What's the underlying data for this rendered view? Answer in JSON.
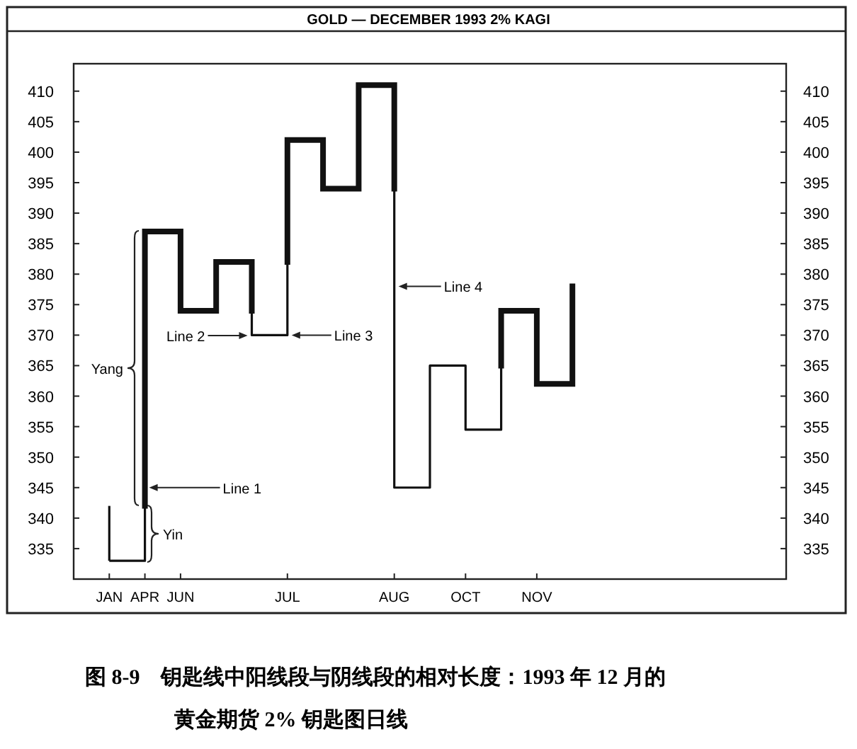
{
  "chart_data": {
    "type": "step",
    "title": "GOLD — DECEMBER 1993 2% KAGI",
    "categories": [
      "JAN",
      "APR",
      "JUN",
      null,
      null,
      "JUL",
      null,
      null,
      "AUG",
      null,
      "OCT",
      null,
      "NOV",
      null,
      null,
      null,
      null,
      null,
      null
    ],
    "ylim": [
      330,
      414.5
    ],
    "yticks": [
      335,
      340,
      345,
      350,
      355,
      360,
      365,
      370,
      375,
      380,
      385,
      390,
      395,
      400,
      405,
      410
    ],
    "y2lim": [
      330,
      414.5
    ],
    "y2ticks": [
      335,
      340,
      345,
      350,
      355,
      360,
      365,
      370,
      375,
      380,
      385,
      390,
      395,
      400,
      405,
      410
    ],
    "grid": false,
    "marker": "none",
    "line_style": "solid",
    "series": [
      {
        "color": "#111111",
        "values": [
          333,
          387,
          374,
          382,
          370,
          402,
          394,
          411,
          345,
          365,
          354.5,
          374,
          362,
          378,
          null,
          null,
          null,
          null,
          null
        ]
      },
      {
        "type": "bar",
        "color": "#111111",
        "base": [
          342,
          null,
          null,
          null,
          null,
          null,
          null,
          null,
          null,
          null,
          null,
          null,
          null,
          null,
          null,
          null,
          null,
          null,
          null
        ],
        "values": [
          -9,
          null,
          null,
          null,
          null,
          null,
          null,
          null,
          null,
          null,
          null,
          null,
          null,
          null,
          null,
          null,
          null,
          null,
          null
        ]
      }
    ],
    "annotations": [
      "Yang",
      "Yin",
      {
        "text": "Line 1",
        "x": "APR",
        "y": 345
      },
      "Line 2",
      {
        "text": "Line 3",
        "x": "JUL",
        "y": 370
      },
      {
        "text": "Line 4",
        "x": "AUG",
        "y": 378
      },
      "图 8-9　钥匙线中阳线段与阴线段的相对长度：1993 年 12 月的",
      "黄金期货 2% 钥匙图日线"
    ]
  }
}
